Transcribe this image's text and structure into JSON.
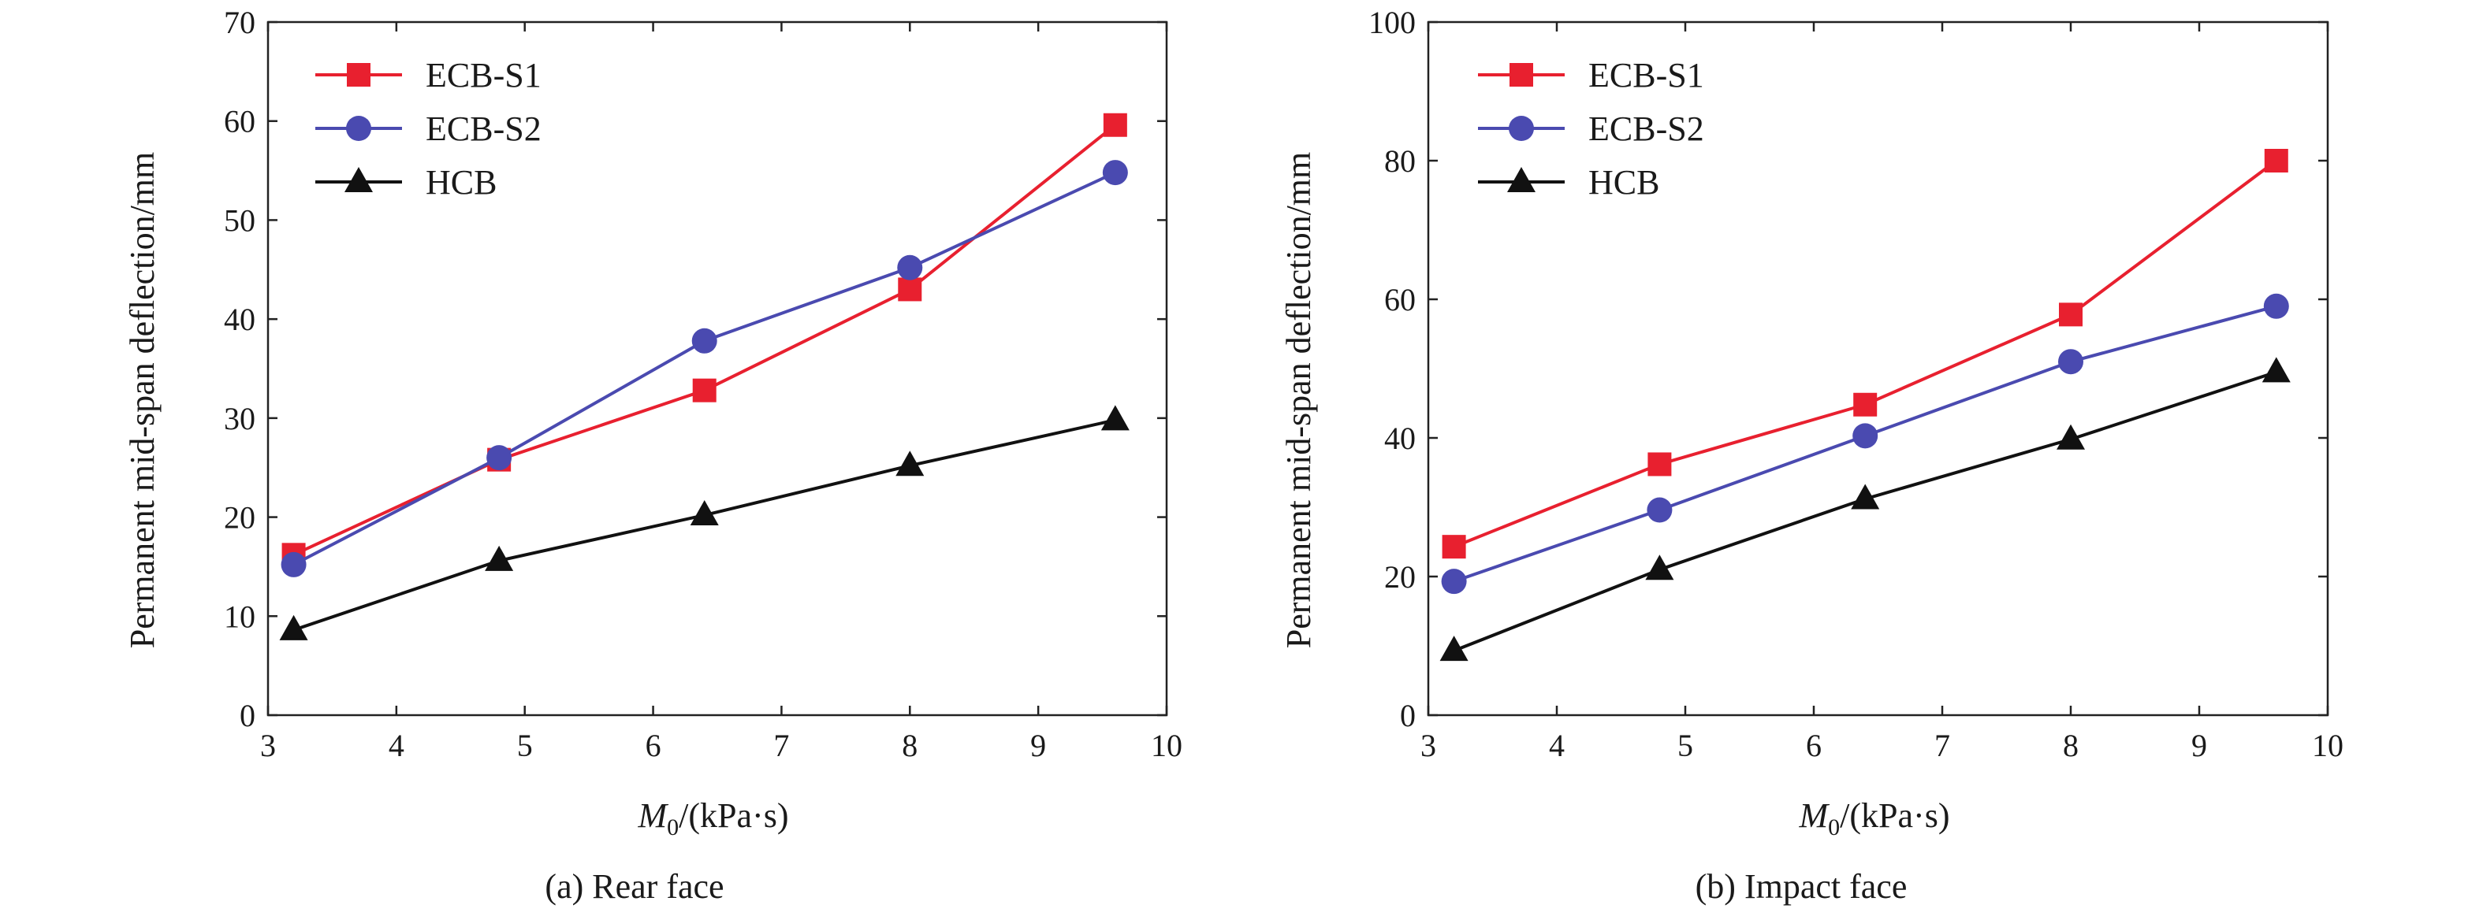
{
  "figure": {
    "panels": [
      {
        "caption": "(a) Rear face",
        "xlabel_main": "M",
        "xlabel_sub": "0",
        "xlabel_rest": "/(kPa·s)",
        "ylabel": "Permanent mid-span deflection/mm"
      },
      {
        "caption": "(b) Impact face",
        "xlabel_main": "M",
        "xlabel_sub": "0",
        "xlabel_rest": "/(kPa·s)",
        "ylabel": "Permanent mid-span deflection/mm"
      }
    ]
  },
  "chart_data": [
    {
      "type": "line",
      "title": "(a) Rear face",
      "xlabel": "M0/(kPa·s)",
      "ylabel": "Permanent mid-span deflection/mm",
      "xlim": [
        3,
        10
      ],
      "ylim": [
        0,
        70
      ],
      "xticks": [
        3,
        4,
        5,
        6,
        7,
        8,
        9,
        10
      ],
      "yticks": [
        0,
        10,
        20,
        30,
        40,
        50,
        60,
        70
      ],
      "grid": false,
      "legend_position": "top-left",
      "x": [
        3.2,
        4.8,
        6.4,
        8.0,
        9.6
      ],
      "series": [
        {
          "name": "ECB-S1",
          "marker": "square",
          "color": "#e8202f",
          "values": [
            16.2,
            25.8,
            32.8,
            43.0,
            59.6
          ]
        },
        {
          "name": "ECB-S2",
          "marker": "circle",
          "color": "#4a4ab0",
          "values": [
            15.2,
            26.0,
            37.8,
            45.2,
            54.8
          ]
        },
        {
          "name": "HCB",
          "marker": "triangle",
          "color": "#111111",
          "values": [
            8.6,
            15.6,
            20.2,
            25.2,
            29.8
          ]
        }
      ]
    },
    {
      "type": "line",
      "title": "(b) Impact face",
      "xlabel": "M0/(kPa·s)",
      "ylabel": "Permanent mid-span deflection/mm",
      "xlim": [
        3,
        10
      ],
      "ylim": [
        0,
        100
      ],
      "xticks": [
        3,
        4,
        5,
        6,
        7,
        8,
        9,
        10
      ],
      "yticks": [
        0,
        20,
        40,
        60,
        80,
        100
      ],
      "grid": false,
      "legend_position": "top-left",
      "x": [
        3.2,
        4.8,
        6.4,
        8.0,
        9.6
      ],
      "series": [
        {
          "name": "ECB-S1",
          "marker": "square",
          "color": "#e8202f",
          "values": [
            24.3,
            36.2,
            44.8,
            57.8,
            80.0
          ]
        },
        {
          "name": "ECB-S2",
          "marker": "circle",
          "color": "#4a4ab0",
          "values": [
            19.3,
            29.6,
            40.3,
            51.0,
            59.0
          ]
        },
        {
          "name": "HCB",
          "marker": "triangle",
          "color": "#111111",
          "values": [
            9.3,
            21.0,
            31.2,
            39.8,
            49.5
          ]
        }
      ]
    }
  ]
}
